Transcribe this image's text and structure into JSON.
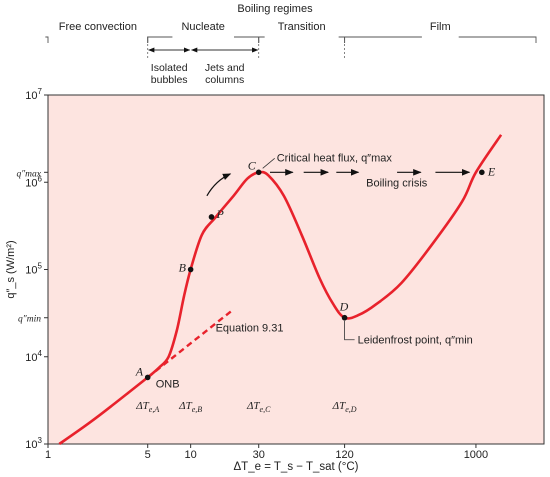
{
  "chart_data": {
    "type": "line",
    "title": "Boiling regimes",
    "xlabel": "ΔT_e = T_s − T_sat (°C)",
    "ylabel": "q″_s (W/m²)",
    "xscale": "log",
    "yscale": "log",
    "xlim": [
      1,
      3000
    ],
    "ylim": [
      1000,
      10000000
    ],
    "xticks": [
      "1",
      "5",
      "10",
      "30",
      "120",
      "1000"
    ],
    "yticks": [
      {
        "value": 1000,
        "base": "10",
        "exp": "3"
      },
      {
        "value": 10000,
        "base": "10",
        "exp": "4"
      },
      {
        "value": 100000,
        "base": "10",
        "exp": "5"
      },
      {
        "value": 1000000,
        "base": "10",
        "exp": "6"
      },
      {
        "value": 10000000,
        "base": "10",
        "exp": "7"
      }
    ],
    "ytick_qmax": "q″max",
    "ytick_qmin": "q″min",
    "grid": false,
    "colors": {
      "plot_bg": "#fde4e0",
      "curve": "#e8222c",
      "axis": "#333333",
      "arrow": "#111111"
    },
    "regimes": [
      {
        "label": "Free convection",
        "from": 1,
        "to": 5
      },
      {
        "label": "Nucleate",
        "from": 5,
        "to": 30
      },
      {
        "label": "Transition",
        "from": 30,
        "to": 120
      },
      {
        "label": "Film",
        "from": 120,
        "to": 3000
      }
    ],
    "subregimes": [
      {
        "line1": "Isolated",
        "line2": "bubbles",
        "from": 5,
        "to": 10
      },
      {
        "line1": "Jets and",
        "line2": "columns",
        "from": 10,
        "to": 30
      }
    ],
    "curve_x": [
      1.2,
      2,
      3,
      5,
      6,
      7,
      8,
      9,
      10,
      12,
      15,
      20,
      25,
      30,
      35,
      45,
      60,
      80,
      100,
      120,
      150,
      200,
      300,
      500,
      800,
      1000,
      1500
    ],
    "curve_y": [
      1000,
      1800,
      3000,
      5800,
      7500,
      10000,
      20000,
      50000,
      100000,
      250000,
      400000,
      700000,
      1100000,
      1300000,
      1200000,
      700000,
      250000,
      80000,
      40000,
      28000,
      30000,
      40000,
      70000,
      200000,
      600000,
      1300000,
      3500000
    ],
    "equation_line": {
      "label": "Equation 9.31",
      "x": [
        5,
        20
      ],
      "y": [
        5800,
        35000
      ]
    },
    "points": [
      {
        "label": "A",
        "x": 5,
        "y": 5800,
        "note": "ONB"
      },
      {
        "label": "B",
        "x": 10,
        "y": 100000,
        "note": ""
      },
      {
        "label": "P",
        "x": 14,
        "y": 400000,
        "note": ""
      },
      {
        "label": "C",
        "x": 30,
        "y": 1300000,
        "note": "Critical heat flux, q″max"
      },
      {
        "label": "D",
        "x": 120,
        "y": 28000,
        "note": "Leidenfrost point, q″min"
      },
      {
        "label": "E",
        "x": 1100,
        "y": 1300000,
        "note": ""
      }
    ],
    "annotations": {
      "boiling_crisis": "Boiling crisis",
      "delta_labels": [
        {
          "main": "ΔT",
          "sub": "e,A",
          "x": 5
        },
        {
          "main": "ΔT",
          "sub": "e,B",
          "x": 10
        },
        {
          "main": "ΔT",
          "sub": "e,C",
          "x": 30
        },
        {
          "main": "ΔT",
          "sub": "e,D",
          "x": 120
        }
      ]
    }
  }
}
